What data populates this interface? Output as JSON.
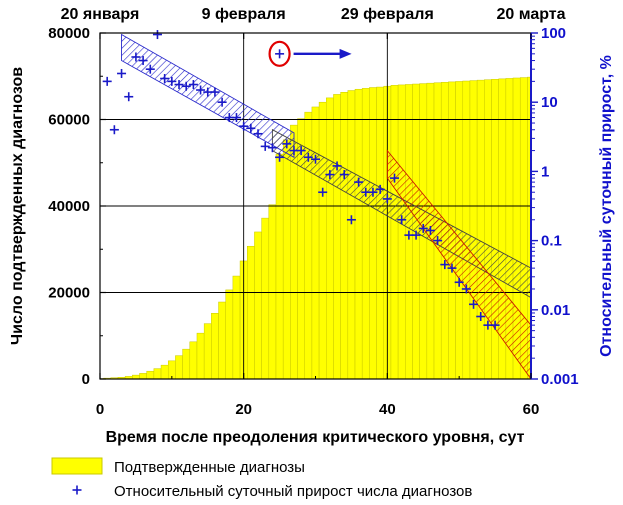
{
  "chart_data": {
    "type": "bar+scatter",
    "date_labels": [
      {
        "day": 0,
        "text": "20 января"
      },
      {
        "day": 20,
        "text": "9 февраля"
      },
      {
        "day": 40,
        "text": "29 февраля"
      },
      {
        "day": 60,
        "text": "20 марта"
      }
    ],
    "xlabel": "Время после преодоления критического уровня, сут",
    "ylabel": "Число подтвержденных диагнозов",
    "y2label": "Относительный суточный прирост, %",
    "xlim": [
      0,
      60
    ],
    "ylim": [
      0,
      80000
    ],
    "y2lim": [
      0.001,
      100
    ],
    "y2scale": "log",
    "x_ticks": [
      0,
      20,
      40,
      60
    ],
    "y_ticks": [
      0,
      20000,
      40000,
      60000,
      80000
    ],
    "y2_ticks": [
      {
        "value": 100,
        "label": "100"
      },
      {
        "value": 10,
        "label": "10"
      },
      {
        "value": 1,
        "label": "1"
      },
      {
        "value": 0.1,
        "label": "0.1"
      },
      {
        "value": 0.01,
        "label": "0.01"
      },
      {
        "value": 0.001,
        "label": "0.001"
      }
    ],
    "bars": {
      "name": "Подтвержденные диагнозы",
      "color": "#ffff00",
      "days": [
        0,
        1,
        2,
        3,
        4,
        5,
        6,
        7,
        8,
        9,
        10,
        11,
        12,
        13,
        14,
        15,
        16,
        17,
        18,
        19,
        20,
        21,
        22,
        23,
        24,
        25,
        26,
        27,
        28,
        29,
        30,
        31,
        32,
        33,
        34,
        35,
        36,
        37,
        38,
        39,
        40,
        41,
        42,
        43,
        44,
        45,
        46,
        47,
        48,
        49,
        50,
        51,
        52,
        53,
        54,
        55,
        56,
        57,
        58,
        59,
        60
      ],
      "values": [
        100,
        200,
        300,
        400,
        600,
        900,
        1300,
        1800,
        2400,
        3200,
        4200,
        5400,
        6900,
        8600,
        10600,
        12800,
        15200,
        17800,
        20600,
        23800,
        27300,
        30700,
        34000,
        37200,
        40300,
        52000,
        55300,
        58700,
        60200,
        61700,
        62900,
        64000,
        65000,
        65800,
        66300,
        66700,
        67000,
        67200,
        67400,
        67500,
        67700,
        67900,
        68000,
        68100,
        68200,
        68300,
        68400,
        68500,
        68600,
        68700,
        68800,
        68900,
        69000,
        69100,
        69200,
        69300,
        69400,
        69500,
        69600,
        69700,
        69800
      ]
    },
    "scatter": {
      "name": "Относительный суточный прирост числа диагнозов",
      "color": "#1a1ac8",
      "x": [
        1,
        2,
        3,
        4,
        5,
        6,
        7,
        8,
        9,
        10,
        11,
        12,
        13,
        14,
        15,
        16,
        17,
        18,
        19,
        20,
        21,
        22,
        23,
        24,
        25,
        26,
        27,
        28,
        29,
        30,
        31,
        32,
        33,
        34,
        35,
        36,
        37,
        38,
        39,
        40,
        41,
        42,
        43,
        44,
        45,
        46,
        47,
        48,
        49,
        50,
        51,
        52,
        53,
        54,
        55
      ],
      "y": [
        20,
        4,
        26,
        12,
        45,
        40,
        30,
        95,
        22,
        20,
        18,
        17,
        18,
        15,
        14,
        14,
        10,
        6,
        6,
        4.5,
        4.2,
        3.5,
        2.3,
        2.2,
        1.6,
        2.5,
        2.0,
        2.0,
        1.6,
        1.5,
        0.5,
        0.9,
        1.2,
        0.9,
        0.2,
        0.7,
        0.5,
        0.5,
        0.55,
        0.4,
        0.8,
        0.2,
        0.12,
        0.12,
        0.15,
        0.14,
        0.1,
        0.045,
        0.04,
        0.025,
        0.02,
        0.012,
        0.008,
        0.006,
        0.006
      ]
    },
    "bands": [
      {
        "name": "trend-band-blue",
        "color": "#2a2acc",
        "x": [
          3,
          27
        ],
        "y_low": [
          40,
          1.6
        ],
        "y_high": [
          95,
          3.6
        ]
      },
      {
        "name": "trend-band-gray",
        "color": "#444444",
        "x": [
          24,
          60
        ],
        "y_low": [
          2.0,
          0.015
        ],
        "y_high": [
          4.0,
          0.04
        ]
      },
      {
        "name": "trend-band-red",
        "color": "#cc1a00",
        "x": [
          40,
          60
        ],
        "y_low": [
          0.8,
          0.001
        ],
        "y_high": [
          2.0,
          0.006
        ]
      }
    ],
    "annotation": {
      "x": 25,
      "y": 50,
      "meaning": "marker → right axis"
    },
    "legend": [
      {
        "type": "bar",
        "label": "Подтвержденные диагнозы",
        "color": "#ffff00"
      },
      {
        "type": "marker",
        "label": "Относительный суточный прирост числа диагнозов",
        "color": "#1a1ac8"
      }
    ]
  }
}
